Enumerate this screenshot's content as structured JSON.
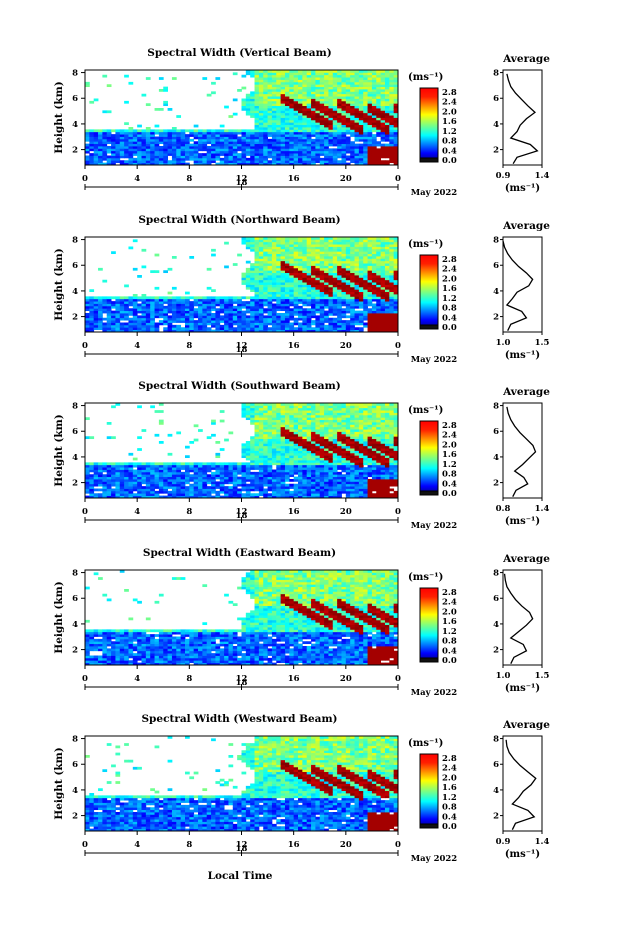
{
  "figure": {
    "xlabel": "Local Time",
    "date_label": "May 2022",
    "colorbar_unit": "(ms⁻¹)",
    "avg_title": "Average",
    "avg_xlabel": "(ms⁻¹)"
  },
  "chart_data": [
    {
      "type": "heatmap",
      "title": "Spectral Width (Vertical Beam)",
      "xlabel": "Local Time",
      "ylabel": "Height (km)",
      "x_ticks": [
        "0",
        "4",
        "8",
        "12",
        "16",
        "20",
        "0"
      ],
      "x_day_label": "18",
      "y_ticks": [
        2,
        4,
        6,
        8
      ],
      "ylim": [
        0.8,
        8.2
      ],
      "colorbar": {
        "unit": "(ms⁻¹)",
        "ticks": [
          "2.8",
          "2.4",
          "2.0",
          "1.6",
          "1.2",
          "0.8",
          "0.4",
          "0.0"
        ],
        "range": [
          0.0,
          2.8
        ]
      },
      "average_profile": {
        "title": "Average",
        "xlabel": "(ms⁻¹)",
        "xticks": [
          "0.9",
          "1.4"
        ],
        "xlim": [
          0.9,
          1.4
        ],
        "height": [
          0.9,
          1.4,
          1.9,
          2.4,
          2.9,
          3.4,
          3.9,
          4.4,
          4.9,
          5.4,
          5.9,
          6.4,
          6.9,
          7.4,
          7.9
        ],
        "width": [
          1.03,
          1.08,
          1.34,
          1.25,
          1.0,
          1.08,
          1.12,
          1.2,
          1.31,
          1.22,
          1.14,
          1.06,
          1.0,
          0.97,
          0.95
        ]
      }
    },
    {
      "type": "heatmap",
      "title": "Spectral Width (Northward Beam)",
      "xlabel": "Local Time",
      "ylabel": "Height (km)",
      "x_ticks": [
        "0",
        "4",
        "8",
        "12",
        "16",
        "20",
        "0"
      ],
      "x_day_label": "18",
      "y_ticks": [
        2,
        4,
        6,
        8
      ],
      "ylim": [
        0.8,
        8.2
      ],
      "colorbar": {
        "unit": "(ms⁻¹)",
        "ticks": [
          "2.8",
          "2.4",
          "2.0",
          "1.6",
          "1.2",
          "0.8",
          "0.4",
          "0.0"
        ],
        "range": [
          0.0,
          2.8
        ]
      },
      "average_profile": {
        "title": "Average",
        "xlabel": "(ms⁻¹)",
        "xticks": [
          "1.0",
          "1.5"
        ],
        "xlim": [
          1.0,
          1.5
        ],
        "height": [
          0.9,
          1.4,
          1.9,
          2.4,
          2.9,
          3.4,
          3.9,
          4.4,
          4.9,
          5.4,
          5.9,
          6.4,
          6.9,
          7.4,
          7.9
        ],
        "width": [
          1.06,
          1.1,
          1.3,
          1.24,
          1.05,
          1.12,
          1.18,
          1.33,
          1.38,
          1.3,
          1.2,
          1.12,
          1.06,
          1.02,
          1.0
        ]
      }
    },
    {
      "type": "heatmap",
      "title": "Spectral Width (Southward Beam)",
      "xlabel": "Local Time",
      "ylabel": "Height (km)",
      "x_ticks": [
        "0",
        "4",
        "8",
        "12",
        "16",
        "20",
        "0"
      ],
      "x_day_label": "18",
      "y_ticks": [
        2,
        4,
        6,
        8
      ],
      "ylim": [
        0.8,
        8.2
      ],
      "colorbar": {
        "unit": "(ms⁻¹)",
        "ticks": [
          "2.8",
          "2.4",
          "2.0",
          "1.6",
          "1.2",
          "0.8",
          "0.4",
          "0.0"
        ],
        "range": [
          0.0,
          2.8
        ]
      },
      "average_profile": {
        "title": "Average",
        "xlabel": "(ms⁻¹)",
        "xticks": [
          "0.8",
          "1.4"
        ],
        "xlim": [
          0.8,
          1.4
        ],
        "height": [
          0.9,
          1.4,
          1.9,
          2.4,
          2.9,
          3.4,
          3.9,
          4.4,
          4.9,
          5.4,
          5.9,
          6.4,
          6.9,
          7.4,
          7.9
        ],
        "width": [
          0.95,
          1.0,
          1.18,
          1.12,
          0.98,
          1.1,
          1.2,
          1.3,
          1.26,
          1.16,
          1.06,
          0.98,
          0.92,
          0.88,
          0.86
        ]
      }
    },
    {
      "type": "heatmap",
      "title": "Spectral Width (Eastward Beam)",
      "xlabel": "Local Time",
      "ylabel": "Height (km)",
      "x_ticks": [
        "0",
        "4",
        "8",
        "12",
        "16",
        "20",
        "0"
      ],
      "x_day_label": "18",
      "y_ticks": [
        2,
        4,
        6,
        8
      ],
      "ylim": [
        0.8,
        8.2
      ],
      "colorbar": {
        "unit": "(ms⁻¹)",
        "ticks": [
          "2.8",
          "2.4",
          "2.0",
          "1.6",
          "1.2",
          "0.8",
          "0.4",
          "0.0"
        ],
        "range": [
          0.0,
          2.8
        ]
      },
      "average_profile": {
        "title": "Average",
        "xlabel": "(ms⁻¹)",
        "xticks": [
          "1.0",
          "1.5"
        ],
        "xlim": [
          1.0,
          1.5
        ],
        "height": [
          0.9,
          1.4,
          1.9,
          2.4,
          2.9,
          3.4,
          3.9,
          4.4,
          4.9,
          5.4,
          5.9,
          6.4,
          6.9,
          7.4,
          7.9
        ],
        "width": [
          1.1,
          1.14,
          1.3,
          1.26,
          1.1,
          1.2,
          1.3,
          1.38,
          1.34,
          1.24,
          1.16,
          1.1,
          1.05,
          1.03,
          1.02
        ]
      }
    },
    {
      "type": "heatmap",
      "title": "Spectral Width (Westward Beam)",
      "xlabel": "Local Time",
      "ylabel": "Height (km)",
      "x_ticks": [
        "0",
        "4",
        "8",
        "12",
        "16",
        "20",
        "0"
      ],
      "x_day_label": "18",
      "y_ticks": [
        2,
        4,
        6,
        8
      ],
      "ylim": [
        0.8,
        8.2
      ],
      "colorbar": {
        "unit": "(ms⁻¹)",
        "ticks": [
          "2.8",
          "2.4",
          "2.0",
          "1.6",
          "1.2",
          "0.8",
          "0.4",
          "0.0"
        ],
        "range": [
          0.0,
          2.8
        ]
      },
      "average_profile": {
        "title": "Average",
        "xlabel": "(ms⁻¹)",
        "xticks": [
          "0.9",
          "1.4"
        ],
        "xlim": [
          0.9,
          1.4
        ],
        "height": [
          0.9,
          1.4,
          1.9,
          2.4,
          2.9,
          3.4,
          3.9,
          4.4,
          4.9,
          5.4,
          5.9,
          6.4,
          6.9,
          7.4,
          7.9
        ],
        "width": [
          1.02,
          1.06,
          1.3,
          1.22,
          1.02,
          1.1,
          1.16,
          1.26,
          1.32,
          1.22,
          1.12,
          1.04,
          0.98,
          0.95,
          0.94
        ]
      }
    }
  ]
}
